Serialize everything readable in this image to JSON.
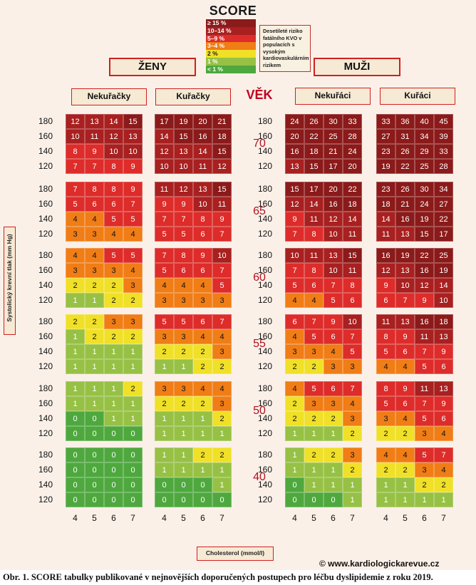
{
  "title": "SCORE",
  "legend": {
    "items": [
      {
        "label": "≥ 15 %",
        "color": "#8b1a1a"
      },
      {
        "label": "10–14 %",
        "color": "#a82020"
      },
      {
        "label": "5–9 %",
        "color": "#dd2c2a"
      },
      {
        "label": "3–4 %",
        "color": "#f07d16"
      },
      {
        "label": "2 %",
        "color": "#f0e027"
      },
      {
        "label": "1 %",
        "color": "#96c145"
      },
      {
        "label": "< 1 %",
        "color": "#4ea83e"
      }
    ],
    "note": "Desetileté riziko fatálního KVO v populacích s vysokým kardiovaskulárním rizikem"
  },
  "sex_labels": {
    "women": "ŽENY",
    "men": "MUŽI"
  },
  "column_headers": [
    "Nekuřačky",
    "Kuřačky",
    "Nekuřáci",
    "Kuřáci"
  ],
  "age_title": "VĚK",
  "y_axis_label": "Systolický krevní tlak (mm Hg)",
  "x_axis_label": "Cholesterol (mmol/l)",
  "copyright": "© www.kardiologickarevue.cz",
  "caption": "Obr. 1. SCORE tabulky publikované v nejnovějších doporučených postupech pro léčbu dyslipidemie z roku 2019.",
  "chart_data": {
    "type": "heatmap",
    "title": "SCORE",
    "groups": [
      "Nekuřačky",
      "Kuřačky",
      "Nekuřáci",
      "Kuřáci"
    ],
    "ages": [
      "70",
      "65",
      "60",
      "55",
      "50",
      "40"
    ],
    "sbp": [
      "180",
      "160",
      "140",
      "120"
    ],
    "cholesterol": [
      "4",
      "5",
      "6",
      "7"
    ],
    "values": {
      "70": [
        [
          [
            12,
            13,
            14,
            15
          ],
          [
            10,
            11,
            12,
            13
          ],
          [
            8,
            9,
            10,
            10
          ],
          [
            7,
            7,
            8,
            9
          ]
        ],
        [
          [
            17,
            19,
            20,
            21
          ],
          [
            14,
            15,
            16,
            18
          ],
          [
            12,
            13,
            14,
            15
          ],
          [
            10,
            10,
            11,
            12
          ]
        ],
        [
          [
            24,
            26,
            30,
            33
          ],
          [
            20,
            22,
            25,
            28
          ],
          [
            16,
            18,
            21,
            24
          ],
          [
            13,
            15,
            17,
            20
          ]
        ],
        [
          [
            33,
            36,
            40,
            45
          ],
          [
            27,
            31,
            34,
            39
          ],
          [
            23,
            26,
            29,
            33
          ],
          [
            19,
            22,
            25,
            28
          ]
        ]
      ],
      "65": [
        [
          [
            7,
            8,
            8,
            9
          ],
          [
            5,
            6,
            6,
            7
          ],
          [
            4,
            4,
            5,
            5
          ],
          [
            3,
            3,
            4,
            4
          ]
        ],
        [
          [
            11,
            12,
            13,
            15
          ],
          [
            9,
            9,
            10,
            11
          ],
          [
            7,
            7,
            8,
            9
          ],
          [
            5,
            5,
            6,
            7
          ]
        ],
        [
          [
            15,
            17,
            20,
            22
          ],
          [
            12,
            14,
            16,
            18
          ],
          [
            9,
            11,
            12,
            14
          ],
          [
            7,
            8,
            10,
            11
          ]
        ],
        [
          [
            23,
            26,
            30,
            34
          ],
          [
            18,
            21,
            24,
            27
          ],
          [
            14,
            16,
            19,
            22
          ],
          [
            11,
            13,
            15,
            17
          ]
        ]
      ],
      "60": [
        [
          [
            4,
            4,
            5,
            5
          ],
          [
            3,
            3,
            3,
            4
          ],
          [
            2,
            2,
            2,
            3
          ],
          [
            1,
            1,
            2,
            2
          ]
        ],
        [
          [
            7,
            8,
            9,
            10
          ],
          [
            5,
            6,
            6,
            7
          ],
          [
            4,
            4,
            4,
            5
          ],
          [
            3,
            3,
            3,
            3
          ]
        ],
        [
          [
            10,
            11,
            13,
            15
          ],
          [
            7,
            8,
            10,
            11
          ],
          [
            5,
            6,
            7,
            8
          ],
          [
            4,
            4,
            5,
            6
          ]
        ],
        [
          [
            16,
            19,
            22,
            25
          ],
          [
            12,
            13,
            16,
            19
          ],
          [
            9,
            10,
            12,
            14
          ],
          [
            6,
            7,
            9,
            10
          ]
        ]
      ],
      "55": [
        [
          [
            2,
            2,
            3,
            3
          ],
          [
            1,
            2,
            2,
            2
          ],
          [
            1,
            1,
            1,
            1
          ],
          [
            1,
            1,
            1,
            1
          ]
        ],
        [
          [
            5,
            5,
            6,
            7
          ],
          [
            3,
            3,
            4,
            4
          ],
          [
            2,
            2,
            2,
            3
          ],
          [
            1,
            1,
            2,
            2
          ]
        ],
        [
          [
            6,
            7,
            9,
            10
          ],
          [
            4,
            5,
            6,
            7
          ],
          [
            3,
            3,
            4,
            5
          ],
          [
            2,
            2,
            3,
            3
          ]
        ],
        [
          [
            11,
            13,
            16,
            18
          ],
          [
            8,
            9,
            11,
            13
          ],
          [
            5,
            6,
            7,
            9
          ],
          [
            4,
            4,
            5,
            6
          ]
        ]
      ],
      "50": [
        [
          [
            1,
            1,
            1,
            2
          ],
          [
            1,
            1,
            1,
            1
          ],
          [
            0,
            0,
            1,
            1
          ],
          [
            0,
            0,
            0,
            0
          ]
        ],
        [
          [
            3,
            3,
            4,
            4
          ],
          [
            2,
            2,
            2,
            3
          ],
          [
            1,
            1,
            1,
            2
          ],
          [
            1,
            1,
            1,
            1
          ]
        ],
        [
          [
            4,
            5,
            6,
            7
          ],
          [
            2,
            3,
            3,
            4
          ],
          [
            2,
            2,
            2,
            3
          ],
          [
            1,
            1,
            1,
            2
          ]
        ],
        [
          [
            8,
            9,
            11,
            13
          ],
          [
            5,
            6,
            7,
            9
          ],
          [
            3,
            4,
            5,
            6
          ],
          [
            2,
            2,
            3,
            4
          ]
        ]
      ],
      "40": [
        [
          [
            0,
            0,
            0,
            0
          ],
          [
            0,
            0,
            0,
            0
          ],
          [
            0,
            0,
            0,
            0
          ],
          [
            0,
            0,
            0,
            0
          ]
        ],
        [
          [
            1,
            1,
            2,
            2
          ],
          [
            1,
            1,
            1,
            1
          ],
          [
            0,
            0,
            0,
            1
          ],
          [
            0,
            0,
            0,
            0
          ]
        ],
        [
          [
            1,
            2,
            2,
            3
          ],
          [
            1,
            1,
            1,
            2
          ],
          [
            0,
            1,
            1,
            1
          ],
          [
            0,
            0,
            0,
            1
          ]
        ],
        [
          [
            4,
            4,
            5,
            7
          ],
          [
            2,
            2,
            3,
            4
          ],
          [
            1,
            1,
            2,
            2
          ],
          [
            1,
            1,
            1,
            1
          ]
        ]
      ]
    }
  }
}
